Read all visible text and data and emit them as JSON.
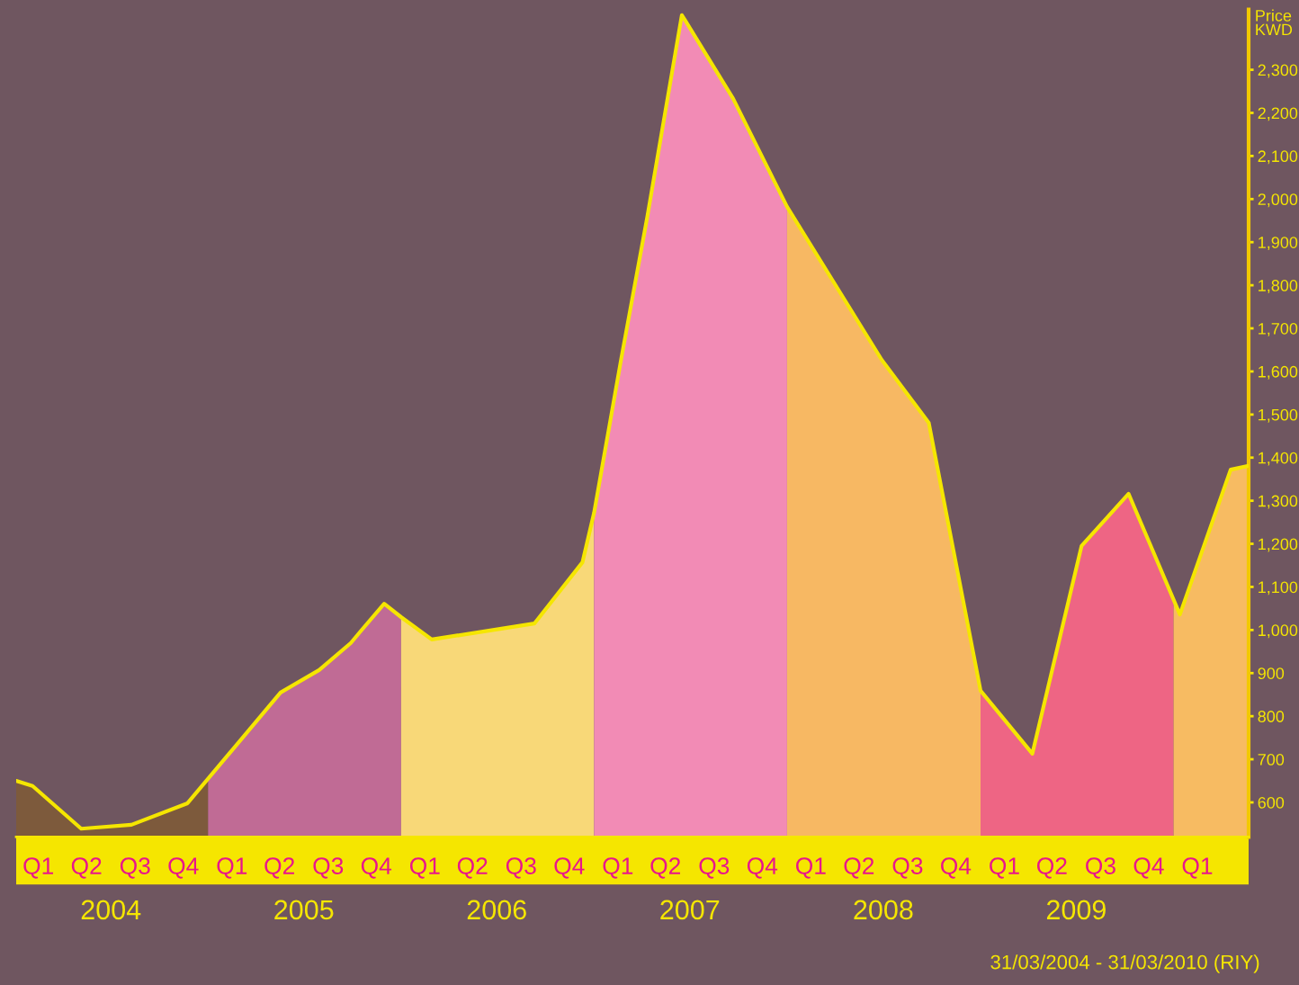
{
  "chart_data": {
    "type": "line",
    "ylabel": "Price\nKWD",
    "x": [
      "2004-01-04",
      "2004-02-04",
      "2004-05-06",
      "2004-08-09",
      "2004-11-23",
      "2005-05-18",
      "2005-07-30",
      "2005-09-28",
      "2005-10-15",
      "2005-11-30",
      "2006-01-01",
      "2006-02-28",
      "2006-09-10",
      "2006-12-10",
      "2007-01-01",
      "2007-02-21",
      "2007-04-12",
      "2007-06-16",
      "2007-09-21",
      "2008-01-01",
      "2008-06-28",
      "2008-09-25",
      "2009-01-01",
      "2009-04-09",
      "2009-07-11",
      "2009-10-08",
      "2010-01-13",
      "2010-04-19",
      "2010-05-23"
    ],
    "series": [
      {
        "type": "area",
        "color": "#7d5a3c",
        "x": [
          "2004-01-04",
          "2004-02-04",
          "2004-05-06",
          "2004-08-09",
          "2004-11-23",
          "2005-01-01"
        ],
        "values": [
          650,
          638,
          539,
          548,
          598,
          650
        ]
      },
      {
        "type": "area",
        "color": "#c06b95",
        "x": [
          "2005-01-01",
          "2005-05-18",
          "2005-07-30",
          "2005-09-28",
          "2005-10-15",
          "2005-11-30",
          "2006-01-01"
        ],
        "values": [
          650,
          855,
          907,
          970,
          995,
          1061,
          1030
        ]
      },
      {
        "type": "area",
        "color": "#f8d878",
        "x": [
          "2006-01-01",
          "2006-02-28",
          "2006-09-10",
          "2006-12-10",
          "2007-01-01"
        ],
        "values": [
          1030,
          978,
          1015,
          1157,
          1272
        ]
      },
      {
        "type": "area",
        "color": "#f28bb5",
        "x": [
          "2007-01-01",
          "2007-02-21",
          "2007-04-12",
          "2007-06-16",
          "2007-09-21",
          "2008-01-01"
        ],
        "values": [
          1272,
          1627,
          1961,
          2427,
          2233,
          1982
        ]
      },
      {
        "type": "area",
        "color": "#f7b863",
        "x": [
          "2008-01-01",
          "2008-06-28",
          "2008-09-25",
          "2009-01-01"
        ],
        "values": [
          1982,
          1627,
          1481,
          859
        ]
      },
      {
        "type": "area",
        "color": "#ee6584",
        "x": [
          "2009-01-01",
          "2009-04-09",
          "2009-07-11",
          "2009-10-08",
          "2010-01-01"
        ],
        "values": [
          859,
          713,
          1195,
          1316,
          1072
        ]
      },
      {
        "type": "area",
        "color": "#f7bb62",
        "x": [
          "2010-01-01",
          "2010-01-13",
          "2010-04-19",
          "2010-05-23"
        ],
        "values": [
          1072,
          1036,
          1372,
          1381
        ]
      },
      {
        "color": "#f5e600",
        "values": [
          650,
          638,
          539,
          548,
          598,
          855,
          907,
          970,
          995,
          1061,
          1030,
          978,
          1015,
          1157,
          1272,
          1627,
          1961,
          2427,
          2233,
          1982,
          1627,
          1481,
          859,
          713,
          1195,
          1316,
          1036,
          1372,
          1381
        ]
      }
    ],
    "xlim": [
      "2004-01-04",
      "2010-05-23"
    ],
    "xticks": [
      {
        "value": "2004-07-01",
        "label": "2004"
      },
      {
        "value": "2005-07-01",
        "label": "2005"
      },
      {
        "value": "2006-07-01",
        "label": "2006"
      },
      {
        "value": "2007-07-01",
        "label": "2007"
      },
      {
        "value": "2008-07-01",
        "label": "2008"
      },
      {
        "value": "2009-07-01",
        "label": "2009"
      }
    ],
    "x2lim": [
      "2004-01-04",
      "2010-05-23"
    ],
    "x2ticks": [
      {
        "value": "2004-02-15",
        "label": "Q1"
      },
      {
        "value": "2004-05-16",
        "label": "Q2"
      },
      {
        "value": "2004-08-16",
        "label": "Q3"
      },
      {
        "value": "2004-11-15",
        "label": "Q4"
      },
      {
        "value": "2005-02-15",
        "label": "Q1"
      },
      {
        "value": "2005-05-16",
        "label": "Q2"
      },
      {
        "value": "2005-08-16",
        "label": "Q3"
      },
      {
        "value": "2005-11-15",
        "label": "Q4"
      },
      {
        "value": "2006-02-15",
        "label": "Q1"
      },
      {
        "value": "2006-05-16",
        "label": "Q2"
      },
      {
        "value": "2006-08-16",
        "label": "Q3"
      },
      {
        "value": "2006-11-15",
        "label": "Q4"
      },
      {
        "value": "2007-02-15",
        "label": "Q1"
      },
      {
        "value": "2007-05-16",
        "label": "Q2"
      },
      {
        "value": "2007-08-16",
        "label": "Q3"
      },
      {
        "value": "2007-11-15",
        "label": "Q4"
      },
      {
        "value": "2008-02-15",
        "label": "Q1"
      },
      {
        "value": "2008-05-16",
        "label": "Q2"
      },
      {
        "value": "2008-08-16",
        "label": "Q3"
      },
      {
        "value": "2008-11-15",
        "label": "Q4"
      },
      {
        "value": "2009-02-15",
        "label": "Q1"
      },
      {
        "value": "2009-05-16",
        "label": "Q2"
      },
      {
        "value": "2009-08-16",
        "label": "Q3"
      },
      {
        "value": "2009-11-15",
        "label": "Q4"
      },
      {
        "value": "2010-02-15",
        "label": "Q1"
      }
    ],
    "ylim": [
      520,
      2440
    ],
    "yticks": [
      {
        "value": 600,
        "label": "600"
      },
      {
        "value": 700,
        "label": "700"
      },
      {
        "value": 800,
        "label": "800"
      },
      {
        "value": 900,
        "label": "900"
      },
      {
        "value": 1000,
        "label": "1,000"
      },
      {
        "value": 1100,
        "label": "1,100"
      },
      {
        "value": 1200,
        "label": "1,200"
      },
      {
        "value": 1300,
        "label": "1,300"
      },
      {
        "value": 1400,
        "label": "1,400"
      },
      {
        "value": 1500,
        "label": "1,500"
      },
      {
        "value": 1600,
        "label": "1,600"
      },
      {
        "value": 1700,
        "label": "1,700"
      },
      {
        "value": 1800,
        "label": "1,800"
      },
      {
        "value": 1900,
        "label": "1,900"
      },
      {
        "value": 2000,
        "label": "2,000"
      },
      {
        "value": 2100,
        "label": "2,100"
      },
      {
        "value": 2200,
        "label": "2,200"
      },
      {
        "value": 2300,
        "label": "2,300"
      }
    ],
    "annotations": [
      "31/03/2004 - 31/03/2010 (RIY)"
    ],
    "grid": false
  }
}
